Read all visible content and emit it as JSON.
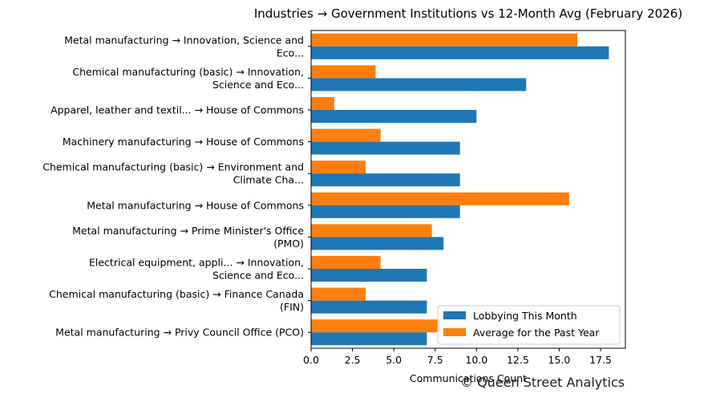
{
  "chart_data": {
    "type": "bar",
    "orientation": "horizontal",
    "title": "Industries → Government Institutions vs 12-Month Avg (February 2026)",
    "xlabel": "Communications Count",
    "ylabel": "",
    "xlim": [
      0,
      19
    ],
    "xticks": [
      "0.0",
      "2.5",
      "5.0",
      "7.5",
      "10.0",
      "12.5",
      "15.0",
      "17.5"
    ],
    "xtick_values": [
      0,
      2.5,
      5,
      7.5,
      10,
      12.5,
      15,
      17.5
    ],
    "grid": false,
    "legend_position": "lower-right",
    "categories": [
      [
        "Metal manufacturing → Innovation, Science and",
        "Eco..."
      ],
      [
        "Chemical manufacturing (basic) → Innovation,",
        "Science and Eco..."
      ],
      [
        "Apparel, leather and textil... → House of Commons"
      ],
      [
        "Machinery manufacturing → House of Commons"
      ],
      [
        "Chemical manufacturing (basic) → Environment and",
        "Climate Cha..."
      ],
      [
        "Metal manufacturing → House of Commons"
      ],
      [
        "Metal manufacturing → Prime Minister's Office",
        "(PMO)"
      ],
      [
        "Electrical equipment, appli... → Innovation,",
        "Science and Eco..."
      ],
      [
        "Chemical manufacturing (basic) → Finance Canada",
        "(FIN)"
      ],
      [
        "Metal manufacturing → Privy Council Office (PCO)"
      ]
    ],
    "series": [
      {
        "name": "Lobbying This Month",
        "color": "#1f77b4",
        "values": [
          18,
          13,
          10,
          9,
          9,
          9,
          8,
          7,
          7,
          7
        ]
      },
      {
        "name": "Average for the Past Year",
        "color": "#ff7f0e",
        "values": [
          16.1,
          3.9,
          1.4,
          4.2,
          3.3,
          15.6,
          7.3,
          4.2,
          3.3,
          7.8
        ]
      }
    ]
  },
  "watermark": "© Queen Street Analytics"
}
